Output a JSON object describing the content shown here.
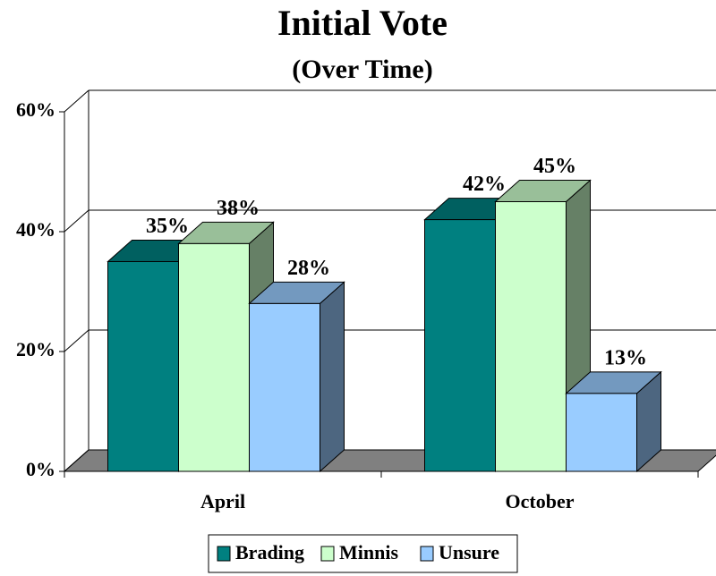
{
  "chart_data": {
    "type": "bar3d",
    "title": "Initial Vote",
    "subtitle": "(Over Time)",
    "categories": [
      "April",
      "October"
    ],
    "series": [
      {
        "name": "Brading",
        "color": "#008080",
        "values": [
          35,
          42
        ],
        "value_labels": [
          "35%",
          "42%"
        ]
      },
      {
        "name": "Minnis",
        "color": "#ccffcc",
        "values": [
          38,
          45
        ],
        "value_labels": [
          "38%",
          "45%"
        ]
      },
      {
        "name": "Unsure",
        "color": "#99ccff",
        "values": [
          28,
          13
        ],
        "value_labels": [
          "28%",
          "13%"
        ]
      }
    ],
    "ylim": [
      0,
      60
    ],
    "yticks": [
      {
        "value": 0,
        "label": "0%"
      },
      {
        "value": 20,
        "label": "20%"
      },
      {
        "value": 40,
        "label": "40%"
      },
      {
        "value": 60,
        "label": "60%"
      }
    ],
    "grid": true,
    "legend": "bottom"
  }
}
